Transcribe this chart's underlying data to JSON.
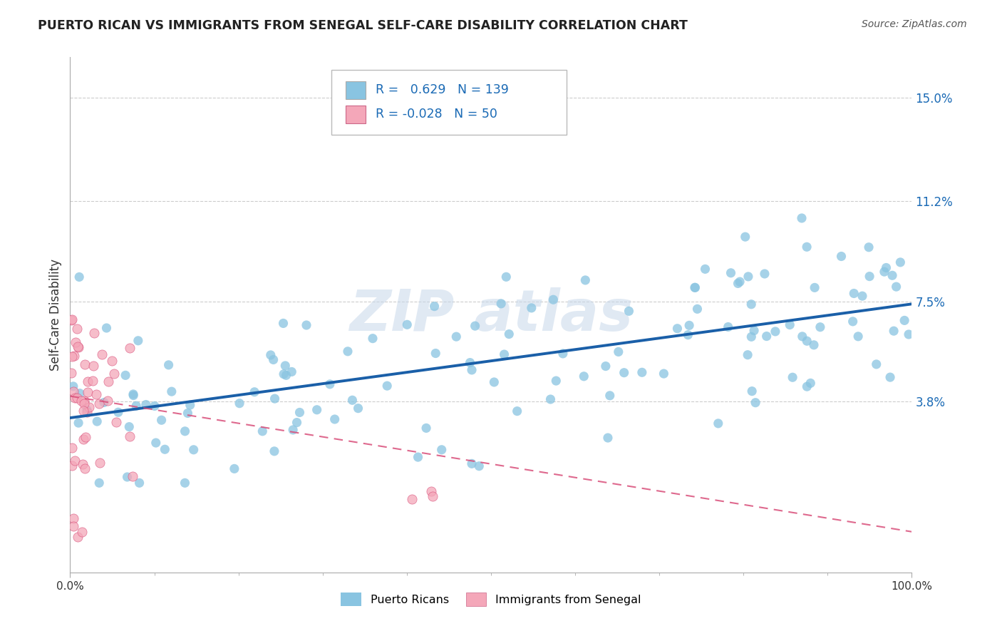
{
  "title": "PUERTO RICAN VS IMMIGRANTS FROM SENEGAL SELF-CARE DISABILITY CORRELATION CHART",
  "source": "Source: ZipAtlas.com",
  "ylabel": "Self-Care Disability",
  "legend_label_blue": "Puerto Ricans",
  "legend_label_pink": "Immigrants from Senegal",
  "blue_R": 0.629,
  "blue_N": 139,
  "pink_R": -0.028,
  "pink_N": 50,
  "blue_color": "#89c4e1",
  "pink_color": "#f4a7b9",
  "blue_line_color": "#1a5fa8",
  "pink_line_color": "#d94f7a",
  "xmin": 0.0,
  "xmax": 1.0,
  "ymin": -0.025,
  "ymax": 0.165,
  "ytick_vals": [
    0.038,
    0.075,
    0.112,
    0.15
  ],
  "ytick_labels": [
    "3.8%",
    "7.5%",
    "11.2%",
    "15.0%"
  ],
  "blue_line_x0": 0.0,
  "blue_line_y0": 0.032,
  "blue_line_x1": 1.0,
  "blue_line_y1": 0.074,
  "pink_line_x0": 0.0,
  "pink_line_y0": 0.04,
  "pink_line_x1": 1.0,
  "pink_line_y1": -0.01
}
